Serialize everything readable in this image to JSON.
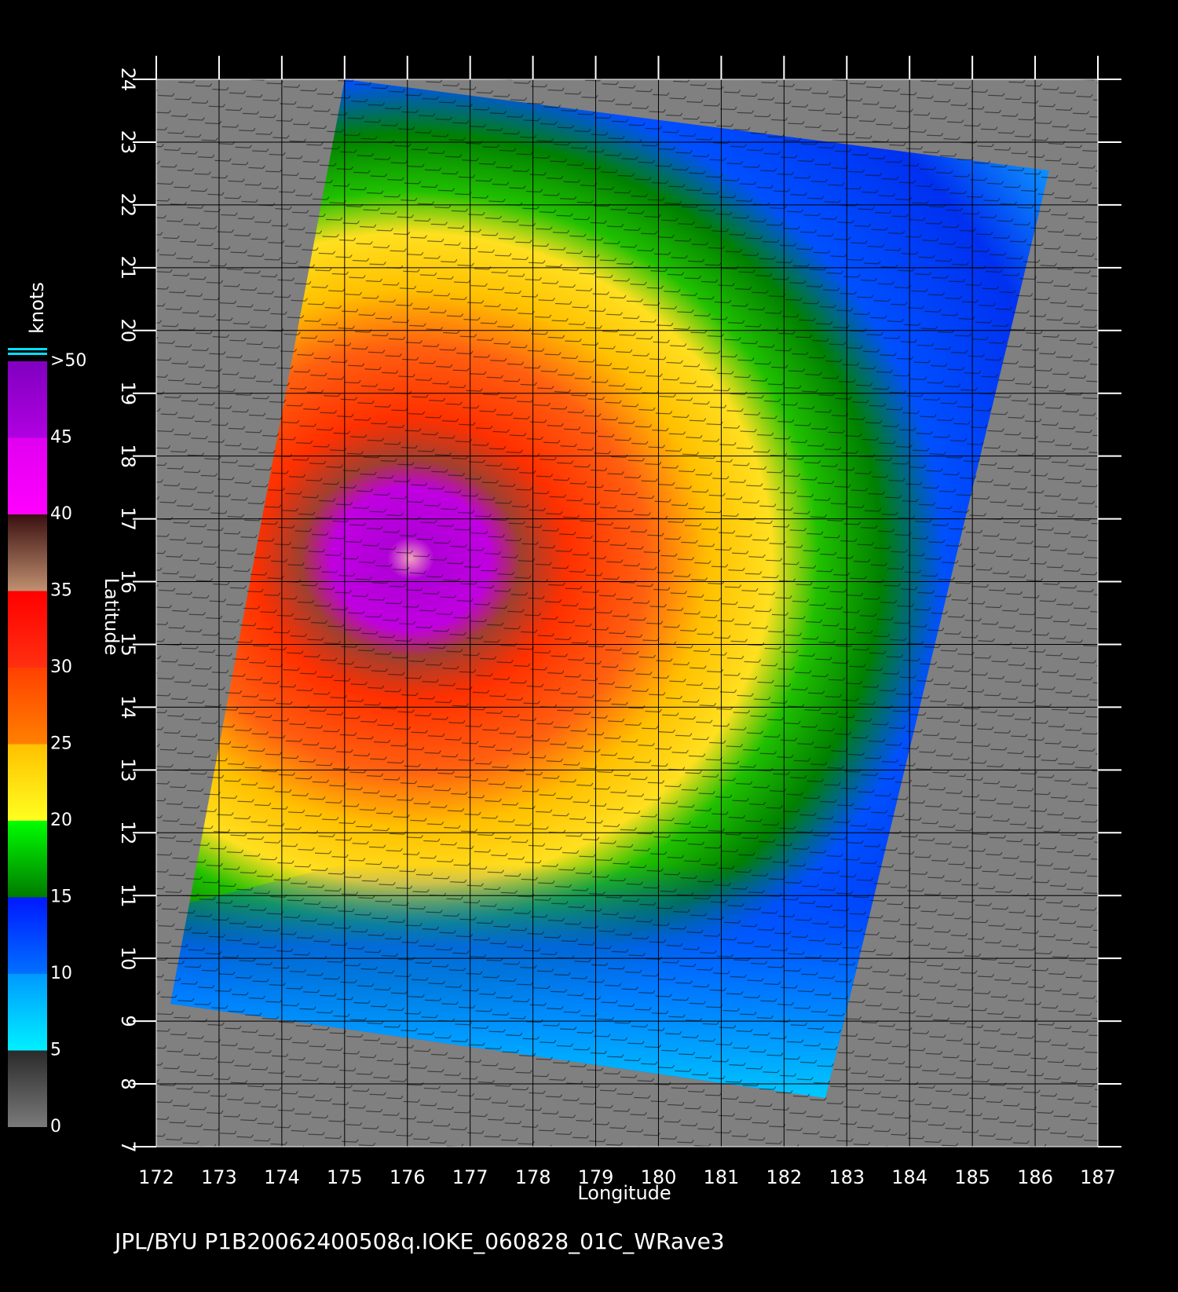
{
  "map": {
    "footer": "JPL/BYU  P1B20062400508q.IOKE_060828_01C_WRave3",
    "xlabel": "Longitude",
    "ylabel": "Latitude",
    "xlim": [
      172,
      187
    ],
    "ylim": [
      7,
      24
    ],
    "xticks": [
      172,
      173,
      174,
      175,
      176,
      177,
      178,
      179,
      180,
      181,
      182,
      183,
      184,
      185,
      186,
      187
    ],
    "yticks": [
      7,
      8,
      9,
      10,
      11,
      12,
      13,
      14,
      15,
      16,
      17,
      18,
      19,
      20,
      21,
      22,
      23,
      24
    ],
    "colorbar": {
      "label": "knots",
      "ticks": [
        0,
        5,
        10,
        15,
        20,
        25,
        30,
        35,
        40,
        45,
        {
          "value": 50,
          "label": ">50"
        }
      ],
      "colors": [
        [
          "#7a7a7a",
          "#2a2a2a"
        ],
        [
          "#00f0ff",
          "#0099ff"
        ],
        [
          "#0070ff",
          "#0018ff"
        ],
        [
          "#007a00",
          "#00ff00"
        ],
        [
          "#ffff20",
          "#ffc000"
        ],
        [
          "#ff8000",
          "#ff4000"
        ],
        [
          "#ff3010",
          "#ff0000"
        ],
        [
          "#c09070",
          "#3a1010"
        ],
        [
          "#ff00ff",
          "#e000f0"
        ],
        [
          "#b000e0",
          "#8000c0"
        ]
      ]
    }
  }
}
